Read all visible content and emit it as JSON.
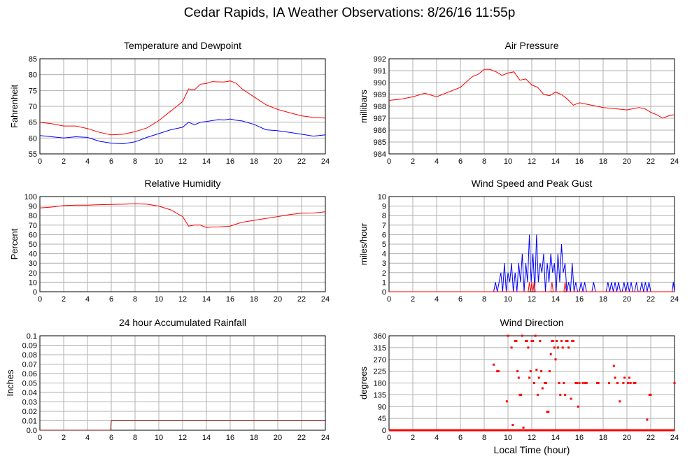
{
  "page": {
    "title": "Cedar Rapids, IA Weather Observations: 8/26/16 11:55p",
    "xlabel": "Local Time (hour)"
  },
  "colors": {
    "red": "#ff0000",
    "blue": "#0000ff",
    "darkred": "#800000",
    "grid": "#b0b0b0"
  },
  "chart_data": [
    {
      "id": "temp",
      "type": "line",
      "title": "Temperature and Dewpoint",
      "ylabel": "Fahrenheit",
      "xlim": [
        0,
        24
      ],
      "ylim": [
        55,
        85
      ],
      "xticks": [
        0,
        2,
        4,
        6,
        8,
        10,
        12,
        14,
        16,
        18,
        20,
        22,
        24
      ],
      "yticks": [
        55,
        60,
        65,
        70,
        75,
        80,
        85
      ],
      "series": [
        {
          "color": "red",
          "x": [
            0,
            1,
            2,
            3,
            4,
            5,
            6,
            7,
            8,
            9,
            10,
            11,
            12,
            12.5,
            13,
            13.5,
            14,
            14.5,
            15,
            15.5,
            16,
            16.5,
            17,
            18,
            19,
            20,
            21,
            22,
            23,
            24
          ],
          "y": [
            65,
            64.5,
            63.8,
            63.8,
            63,
            61.8,
            61,
            61.2,
            62,
            63.2,
            65.5,
            68.5,
            71.5,
            75.5,
            75.2,
            77,
            77.2,
            77.8,
            77.7,
            77.7,
            78,
            77.3,
            75.5,
            73,
            70.5,
            69,
            68,
            67,
            66.5,
            66.3
          ]
        },
        {
          "color": "blue",
          "x": [
            0,
            1,
            2,
            3,
            4,
            5,
            6,
            7,
            8,
            9,
            10,
            11,
            12,
            12.5,
            13,
            13.5,
            14,
            14.5,
            15,
            15.5,
            16,
            16.5,
            17,
            18,
            19,
            20,
            21,
            22,
            23,
            24
          ],
          "y": [
            60.8,
            60.4,
            60,
            60.4,
            60.2,
            59,
            58.4,
            58.2,
            58.8,
            60.2,
            61.4,
            62.6,
            63.4,
            65,
            64.2,
            65,
            65.2,
            65.5,
            65.8,
            65.7,
            66,
            65.6,
            65.4,
            64.3,
            62.6,
            62.3,
            61.8,
            61.2,
            60.6,
            61
          ]
        }
      ]
    },
    {
      "id": "pres",
      "type": "line",
      "title": "Air Pressure",
      "ylabel": "millibars",
      "xlim": [
        0,
        24
      ],
      "ylim": [
        984,
        992
      ],
      "xticks": [
        0,
        2,
        4,
        6,
        8,
        10,
        12,
        14,
        16,
        18,
        20,
        22,
        24
      ],
      "yticks": [
        984,
        985,
        986,
        987,
        988,
        989,
        990,
        991,
        992
      ],
      "series": [
        {
          "color": "red",
          "x": [
            0,
            1,
            2,
            3,
            4,
            5,
            6,
            7,
            7.5,
            8,
            8.5,
            9,
            9.5,
            10,
            10.5,
            11,
            11.5,
            12,
            12.5,
            13,
            13.5,
            14,
            14.5,
            15,
            15.5,
            16,
            17,
            18,
            19,
            20,
            21,
            21.5,
            22,
            22.5,
            23,
            23.5,
            24
          ],
          "y": [
            988.5,
            988.6,
            988.8,
            989.1,
            988.8,
            989.2,
            989.6,
            990.5,
            990.7,
            991.1,
            991.1,
            990.9,
            990.6,
            990.8,
            990.9,
            990.2,
            990.3,
            989.8,
            989.6,
            989,
            988.9,
            989.2,
            989,
            988.6,
            988.1,
            988.3,
            988.1,
            987.9,
            987.8,
            987.7,
            987.9,
            987.8,
            987.5,
            987.3,
            987,
            987.2,
            987.3
          ]
        }
      ]
    },
    {
      "id": "rh",
      "type": "line",
      "title": "Relative Humidity",
      "ylabel": "Percent",
      "xlim": [
        0,
        24
      ],
      "ylim": [
        0,
        100
      ],
      "xticks": [
        0,
        2,
        4,
        6,
        8,
        10,
        12,
        14,
        16,
        18,
        20,
        22,
        24
      ],
      "yticks": [
        0,
        10,
        20,
        30,
        40,
        50,
        60,
        70,
        80,
        90,
        100
      ],
      "series": [
        {
          "color": "red",
          "x": [
            0,
            1,
            2,
            3,
            4,
            5,
            6,
            7,
            8,
            9,
            10,
            11,
            12,
            12.5,
            13,
            13.5,
            14,
            14.5,
            15,
            16,
            16.5,
            17,
            18,
            19,
            20,
            21,
            22,
            23,
            24
          ],
          "y": [
            88,
            89,
            90.5,
            91,
            91,
            91.5,
            91.8,
            92,
            92.5,
            92,
            90,
            86,
            79,
            69,
            70,
            70,
            67.5,
            68,
            68,
            69,
            71,
            73,
            75,
            77,
            79,
            81,
            82.5,
            82.7,
            84
          ]
        }
      ]
    },
    {
      "id": "wind",
      "type": "line",
      "title": "Wind Speed and Peak Gust",
      "ylabel": "miles/hour",
      "xlim": [
        0,
        24
      ],
      "ylim": [
        0,
        10
      ],
      "xticks": [
        0,
        2,
        4,
        6,
        8,
        10,
        12,
        14,
        16,
        18,
        20,
        22,
        24
      ],
      "yticks": [
        0,
        1,
        2,
        3,
        4,
        5,
        6,
        7,
        8,
        9,
        10
      ],
      "series": [
        {
          "color": "blue",
          "x": [
            0,
            8.8,
            8.95,
            9.1,
            9.25,
            9.4,
            9.55,
            9.7,
            9.85,
            10,
            10.15,
            10.3,
            10.45,
            10.6,
            10.75,
            10.9,
            11.05,
            11.2,
            11.35,
            11.5,
            11.65,
            11.8,
            11.95,
            12.1,
            12.25,
            12.4,
            12.55,
            12.7,
            12.85,
            13,
            13.15,
            13.3,
            13.45,
            13.6,
            13.75,
            13.9,
            14.05,
            14.2,
            14.35,
            14.5,
            14.65,
            14.8,
            14.95,
            15.1,
            15.25,
            15.4,
            15.55,
            15.7,
            15.85,
            16,
            16.15,
            16.3,
            16.45,
            16.6,
            16.75,
            16.9,
            17.05,
            17.2,
            17.35,
            17.5,
            17.65,
            17.8,
            17.95,
            18.1,
            18.25,
            18.4,
            18.55,
            18.7,
            18.85,
            19,
            19.15,
            19.3,
            19.45,
            19.6,
            19.75,
            19.9,
            20.05,
            20.2,
            20.35,
            20.5,
            20.65,
            20.8,
            20.95,
            21.1,
            21.25,
            21.4,
            21.55,
            21.7,
            21.85,
            22,
            22.15,
            22.3,
            22.45,
            23.8,
            23.9,
            24
          ],
          "y": [
            0,
            0,
            1,
            0,
            1,
            2,
            0,
            3,
            0,
            2,
            1,
            3,
            0,
            2,
            0,
            3,
            1,
            4,
            0,
            3,
            1,
            6,
            1,
            4,
            0,
            6,
            1,
            3,
            2,
            4,
            0,
            3,
            1,
            4,
            2,
            3,
            0,
            4,
            1,
            5,
            2,
            3,
            0,
            1,
            0,
            3,
            0,
            1,
            0,
            0,
            1,
            0,
            1,
            0,
            0,
            0,
            0,
            1,
            0,
            0,
            0,
            0,
            0,
            0,
            0,
            1,
            0,
            1,
            0,
            1,
            0,
            1,
            0,
            0,
            1,
            0,
            1,
            0,
            1,
            0,
            0,
            1,
            0,
            0,
            1,
            0,
            1,
            0,
            1,
            0,
            0,
            0,
            0,
            0,
            1,
            0
          ]
        },
        {
          "color": "red",
          "x": [
            0,
            11.7,
            11.8,
            11.9,
            12,
            12.1,
            12.2,
            12.3,
            13.6,
            13.7,
            13.8,
            14.7,
            14.8,
            14.9,
            24
          ],
          "y": [
            0,
            0,
            1,
            0,
            1,
            0,
            1,
            0,
            0,
            1,
            0,
            0,
            1,
            0,
            0
          ]
        }
      ]
    },
    {
      "id": "rain",
      "type": "line",
      "title": "24 hour Accumulated Rainfall",
      "ylabel": "Inches",
      "xlim": [
        0,
        24
      ],
      "ylim": [
        0,
        0.1
      ],
      "xticks": [
        0,
        2,
        4,
        6,
        8,
        10,
        12,
        14,
        16,
        18,
        20,
        22,
        24
      ],
      "yticks": [
        0,
        0.01,
        0.02,
        0.03,
        0.04,
        0.05,
        0.06,
        0.07,
        0.08,
        0.09,
        0.1
      ],
      "ytick_labels": [
        "0.0",
        "0.01",
        "0.02",
        "0.03",
        "0.04",
        "0.05",
        "0.06",
        "0.07",
        "0.08",
        "0.09",
        "0.1"
      ],
      "series": [
        {
          "color": "darkred",
          "x": [
            0,
            5.95,
            6,
            24
          ],
          "y": [
            0,
            0,
            0.01,
            0.01
          ]
        }
      ]
    },
    {
      "id": "wdir",
      "type": "scatter",
      "title": "Wind Direction",
      "ylabel": "degrees",
      "xlim": [
        0,
        24
      ],
      "ylim": [
        0,
        360
      ],
      "xticks": [
        0,
        2,
        4,
        6,
        8,
        10,
        12,
        14,
        16,
        18,
        20,
        22,
        24
      ],
      "yticks": [
        0,
        45,
        90,
        135,
        180,
        225,
        270,
        315,
        360
      ],
      "series": [
        {
          "color": "red",
          "x": [
            8.8,
            9.1,
            9.2,
            9.9,
            10.0,
            10.3,
            10.4,
            10.6,
            10.7,
            10.8,
            10.9,
            11.0,
            11.1,
            11.2,
            11.3,
            11.5,
            11.6,
            11.7,
            11.8,
            11.9,
            12.0,
            12.1,
            12.2,
            12.3,
            12.4,
            12.5,
            12.6,
            12.7,
            12.8,
            12.9,
            13.1,
            13.2,
            13.3,
            13.4,
            13.5,
            13.6,
            13.7,
            13.8,
            13.9,
            14.0,
            14.1,
            14.2,
            14.3,
            14.4,
            14.5,
            14.6,
            14.7,
            14.8,
            14.9,
            15.0,
            15.1,
            15.3,
            15.4,
            15.5,
            15.7,
            15.8,
            15.9,
            16.0,
            16.3,
            16.5,
            16.6,
            17.5,
            17.6,
            18.5,
            18.9,
            19.0,
            19.2,
            19.4,
            19.7,
            19.8,
            20.1,
            20.2,
            20.3,
            20.6,
            20.7,
            21.7,
            21.9,
            22.0,
            24.0
          ],
          "y": [
            250,
            225,
            225,
            110,
            360,
            315,
            20,
            340,
            340,
            225,
            200,
            135,
            135,
            360,
            10,
            340,
            340,
            315,
            200,
            225,
            340,
            340,
            180,
            360,
            230,
            135,
            200,
            340,
            225,
            160,
            180,
            180,
            70,
            70,
            225,
            290,
            340,
            340,
            315,
            270,
            340,
            315,
            180,
            135,
            340,
            315,
            180,
            135,
            340,
            340,
            315,
            120,
            340,
            340,
            180,
            180,
            90,
            180,
            180,
            180,
            180,
            180,
            180,
            180,
            245,
            200,
            180,
            110,
            180,
            200,
            180,
            200,
            180,
            180,
            180,
            40,
            135,
            135,
            180
          ]
        }
      ]
    }
  ]
}
